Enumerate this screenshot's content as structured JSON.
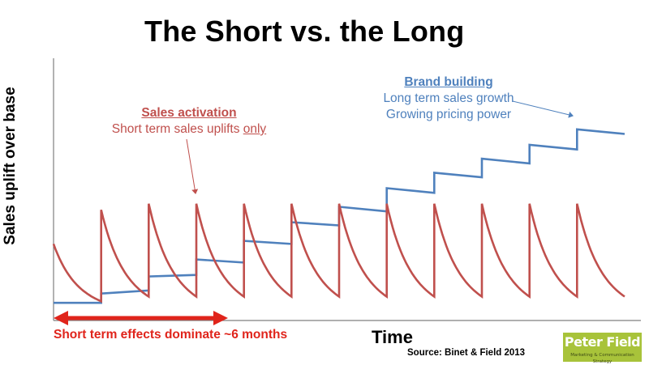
{
  "chart_data": {
    "type": "line",
    "title": "The Short vs. the Long",
    "xlabel": "Time",
    "ylabel": "Sales uplift over base",
    "grid": false,
    "legend": "none",
    "series": [
      {
        "name": "Sales activation",
        "color": "#c0504d",
        "cycles": [
          {
            "t0": 0,
            "t1": 1,
            "v0": 0.4,
            "v1": 0.03
          },
          {
            "t0": 1,
            "t1": 2,
            "v0": 0.62,
            "v1": 0.06
          },
          {
            "t0": 2,
            "t1": 3,
            "v0": 0.66,
            "v1": 0.06
          },
          {
            "t0": 3,
            "t1": 4,
            "v0": 0.66,
            "v1": 0.06
          },
          {
            "t0": 4,
            "t1": 5,
            "v0": 0.66,
            "v1": 0.06
          },
          {
            "t0": 5,
            "t1": 6,
            "v0": 0.66,
            "v1": 0.06
          },
          {
            "t0": 6,
            "t1": 7,
            "v0": 0.66,
            "v1": 0.06
          },
          {
            "t0": 7,
            "t1": 8,
            "v0": 0.66,
            "v1": 0.06
          },
          {
            "t0": 8,
            "t1": 9,
            "v0": 0.66,
            "v1": 0.06
          },
          {
            "t0": 9,
            "t1": 10,
            "v0": 0.66,
            "v1": 0.06
          },
          {
            "t0": 10,
            "t1": 11,
            "v0": 0.66,
            "v1": 0.06
          },
          {
            "t0": 11,
            "t1": 12,
            "v0": 0.66,
            "v1": 0.06
          }
        ]
      },
      {
        "name": "Brand building",
        "color": "#4f81bd",
        "segments": [
          {
            "t0": 0,
            "t1": 1,
            "v0": 0.02,
            "v1": 0.02
          },
          {
            "t0": 1,
            "t1": 2,
            "v0": 0.08,
            "v1": 0.1
          },
          {
            "t0": 2,
            "t1": 3,
            "v0": 0.19,
            "v1": 0.2
          },
          {
            "t0": 3,
            "t1": 4,
            "v0": 0.3,
            "v1": 0.28
          },
          {
            "t0": 4,
            "t1": 5,
            "v0": 0.42,
            "v1": 0.4
          },
          {
            "t0": 5,
            "t1": 6,
            "v0": 0.54,
            "v1": 0.52
          },
          {
            "t0": 6,
            "t1": 7,
            "v0": 0.64,
            "v1": 0.61
          },
          {
            "t0": 7,
            "t1": 8,
            "v0": 0.76,
            "v1": 0.73
          },
          {
            "t0": 8,
            "t1": 9,
            "v0": 0.86,
            "v1": 0.83
          },
          {
            "t0": 9,
            "t1": 10,
            "v0": 0.95,
            "v1": 0.92
          },
          {
            "t0": 10,
            "t1": 11,
            "v0": 1.04,
            "v1": 1.01
          },
          {
            "t0": 11,
            "t1": 12,
            "v0": 1.14,
            "v1": 1.11
          }
        ]
      }
    ],
    "xlim": [
      0,
      12
    ],
    "ylim": [
      0,
      1.4
    ]
  },
  "annotations": {
    "sales_head": "Sales activation",
    "sales_line1": "Short term sales uplifts ",
    "sales_only": "only",
    "brand_head": "Brand building",
    "brand_line1": "Long term sales growth",
    "brand_line2": "Growing pricing power"
  },
  "short_term_label": "Short term effects dominate ~6 months",
  "source": "Source: Binet & Field 2013",
  "logo": {
    "name": "Peter Field",
    "tagline": "Marketing & Communication Strategy",
    "color": "#a8c33a"
  },
  "colors": {
    "arrow_red": "#e0241b",
    "axis": "#7f7f7f"
  }
}
